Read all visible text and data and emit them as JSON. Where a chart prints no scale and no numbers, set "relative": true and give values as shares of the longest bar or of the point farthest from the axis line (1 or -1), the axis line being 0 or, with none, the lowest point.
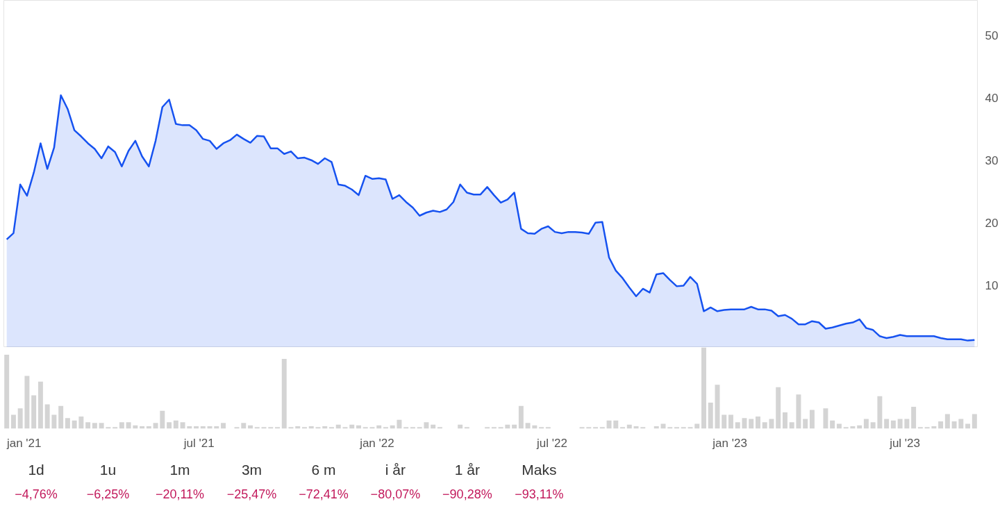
{
  "chart_data": [
    {
      "type": "area",
      "x": [
        "2020-12-14",
        "2020-12-21",
        "2020-12-28",
        "2021-01-04",
        "2021-01-11",
        "2021-01-18",
        "2021-01-25",
        "2021-02-01",
        "2021-02-08",
        "2021-02-15",
        "2021-02-22",
        "2021-03-01",
        "2021-03-08",
        "2021-03-15",
        "2021-03-22",
        "2021-03-29",
        "2021-04-05",
        "2021-04-12",
        "2021-04-19",
        "2021-04-26",
        "2021-05-03",
        "2021-05-10",
        "2021-05-17",
        "2021-05-24",
        "2021-05-31",
        "2021-06-07",
        "2021-06-14",
        "2021-06-21",
        "2021-06-28",
        "2021-07-05",
        "2021-07-12",
        "2021-07-19",
        "2021-07-26",
        "2021-08-02",
        "2021-08-09",
        "2021-08-16",
        "2021-08-23",
        "2021-08-30",
        "2021-09-06",
        "2021-09-13",
        "2021-09-20",
        "2021-09-27",
        "2021-10-04",
        "2021-10-11",
        "2021-10-18",
        "2021-10-25",
        "2021-11-01",
        "2021-11-08",
        "2021-11-15",
        "2021-11-22",
        "2021-11-29",
        "2021-12-06",
        "2021-12-13",
        "2021-12-20",
        "2021-12-27",
        "2022-01-03",
        "2022-01-10",
        "2022-01-17",
        "2022-01-24",
        "2022-01-31",
        "2022-02-07",
        "2022-02-14",
        "2022-02-21",
        "2022-02-28",
        "2022-03-07",
        "2022-03-14",
        "2022-03-21",
        "2022-03-28",
        "2022-04-04",
        "2022-04-11",
        "2022-04-18",
        "2022-04-25",
        "2022-05-02",
        "2022-05-09",
        "2022-05-16",
        "2022-05-23",
        "2022-05-30",
        "2022-06-06",
        "2022-06-13",
        "2022-06-20",
        "2022-06-27",
        "2022-07-04",
        "2022-07-11",
        "2022-07-18",
        "2022-07-25",
        "2022-08-01",
        "2022-08-08",
        "2022-08-15",
        "2022-08-22",
        "2022-08-29",
        "2022-09-05",
        "2022-09-12",
        "2022-09-19",
        "2022-09-26",
        "2022-10-03",
        "2022-10-10",
        "2022-10-17",
        "2022-10-24",
        "2022-10-31",
        "2022-11-07",
        "2022-11-14",
        "2022-11-21",
        "2022-11-28",
        "2022-12-05",
        "2022-12-12",
        "2022-12-19",
        "2022-12-26",
        "2023-01-02",
        "2023-01-09",
        "2023-01-16",
        "2023-01-23",
        "2023-01-30",
        "2023-02-06",
        "2023-02-13",
        "2023-02-20",
        "2023-02-27",
        "2023-03-06",
        "2023-03-13",
        "2023-03-20",
        "2023-03-27",
        "2023-04-03",
        "2023-04-10",
        "2023-04-17",
        "2023-04-24",
        "2023-05-01",
        "2023-05-08",
        "2023-05-15",
        "2023-05-22",
        "2023-05-29",
        "2023-06-05",
        "2023-06-12",
        "2023-06-19",
        "2023-06-26",
        "2023-07-03",
        "2023-07-10",
        "2023-07-17",
        "2023-07-24",
        "2023-07-31",
        "2023-08-07",
        "2023-08-14",
        "2023-08-21",
        "2023-08-28",
        "2023-09-04",
        "2023-09-11"
      ],
      "series": [
        {
          "color": "#1652f0",
          "values": [
            17.3,
            18.3,
            26.1,
            24.3,
            28.0,
            32.7,
            28.6,
            32.0,
            40.4,
            38.2,
            34.8,
            33.8,
            32.7,
            31.8,
            30.3,
            32.2,
            31.3,
            29.0,
            31.5,
            33.1,
            30.6,
            29.0,
            33.1,
            38.5,
            39.7,
            35.8,
            35.6,
            35.6,
            34.8,
            33.4,
            33.1,
            31.8,
            32.7,
            33.2,
            34.1,
            33.4,
            32.8,
            33.9,
            33.8,
            31.9,
            31.9,
            31.0,
            31.4,
            30.3,
            30.4,
            30.0,
            29.4,
            30.3,
            29.7,
            26.1,
            25.9,
            25.3,
            24.4,
            27.5,
            27.0,
            27.1,
            26.9,
            23.8,
            24.4,
            23.3,
            22.4,
            21.1,
            21.6,
            21.9,
            21.7,
            22.1,
            23.3,
            26.1,
            24.8,
            24.5,
            24.5,
            25.7,
            24.4,
            23.2,
            23.7,
            24.8,
            19.0,
            18.3,
            18.2,
            19.0,
            19.4,
            18.5,
            18.3,
            18.5,
            18.5,
            18.4,
            18.2,
            20.0,
            20.1,
            14.4,
            12.3,
            11.1,
            9.6,
            8.2,
            9.4,
            8.8,
            11.7,
            11.9,
            10.8,
            9.8,
            9.9,
            11.3,
            10.2,
            5.8,
            6.4,
            5.8,
            6.0,
            6.1,
            6.1,
            6.1,
            6.5,
            6.1,
            6.1,
            5.9,
            5.0,
            5.2,
            4.6,
            3.7,
            3.7,
            4.2,
            4.0,
            3.0,
            3.2,
            3.5,
            3.8,
            4.0,
            4.5,
            3.1,
            2.8,
            1.8,
            1.5,
            1.7,
            2.0,
            1.8,
            1.8,
            1.8,
            1.8,
            1.8,
            1.5,
            1.3,
            1.3,
            1.3,
            1.1,
            1.2
          ]
        }
      ],
      "xlim": [
        "2020-12-11",
        "2023-09-14"
      ],
      "ylim": [
        0,
        55.6
      ],
      "yticks": [
        10,
        20,
        30,
        40,
        50
      ],
      "tick_labels": "y",
      "grid": false
    },
    {
      "type": "bar",
      "relative": true,
      "color": "#d4d4d4",
      "x": [
        "2020-12-14",
        "2020-12-21",
        "2020-12-28",
        "2021-01-04",
        "2021-01-11",
        "2021-01-18",
        "2021-01-25",
        "2021-02-01",
        "2021-02-08",
        "2021-02-15",
        "2021-02-22",
        "2021-03-01",
        "2021-03-08",
        "2021-03-15",
        "2021-03-22",
        "2021-03-29",
        "2021-04-05",
        "2021-04-12",
        "2021-04-19",
        "2021-04-26",
        "2021-05-03",
        "2021-05-10",
        "2021-05-17",
        "2021-05-24",
        "2021-05-31",
        "2021-06-07",
        "2021-06-14",
        "2021-06-21",
        "2021-06-28",
        "2021-07-05",
        "2021-07-12",
        "2021-07-19",
        "2021-07-26",
        "2021-08-02",
        "2021-08-09",
        "2021-08-16",
        "2021-08-23",
        "2021-08-30",
        "2021-09-06",
        "2021-09-13",
        "2021-09-20",
        "2021-09-27",
        "2021-10-04",
        "2021-10-11",
        "2021-10-18",
        "2021-10-25",
        "2021-11-01",
        "2021-11-08",
        "2021-11-15",
        "2021-11-22",
        "2021-11-29",
        "2021-12-06",
        "2021-12-13",
        "2021-12-20",
        "2021-12-27",
        "2022-01-03",
        "2022-01-10",
        "2022-01-17",
        "2022-01-24",
        "2022-01-31",
        "2022-02-07",
        "2022-02-14",
        "2022-02-21",
        "2022-02-28",
        "2022-03-07",
        "2022-03-14",
        "2022-03-21",
        "2022-03-28",
        "2022-04-04",
        "2022-04-11",
        "2022-04-18",
        "2022-04-25",
        "2022-05-02",
        "2022-05-09",
        "2022-05-16",
        "2022-05-23",
        "2022-05-30",
        "2022-06-06",
        "2022-06-13",
        "2022-06-20",
        "2022-06-27",
        "2022-07-04",
        "2022-07-11",
        "2022-07-18",
        "2022-07-25",
        "2022-08-01",
        "2022-08-08",
        "2022-08-15",
        "2022-08-22",
        "2022-08-29",
        "2022-09-05",
        "2022-09-12",
        "2022-09-19",
        "2022-09-26",
        "2022-10-03",
        "2022-10-10",
        "2022-10-17",
        "2022-10-24",
        "2022-10-31",
        "2022-11-07",
        "2022-11-14",
        "2022-11-21",
        "2022-11-28",
        "2022-12-05",
        "2022-12-12",
        "2022-12-19",
        "2022-12-26",
        "2023-01-02",
        "2023-01-09",
        "2023-01-16",
        "2023-01-23",
        "2023-01-30",
        "2023-02-06",
        "2023-02-13",
        "2023-02-20",
        "2023-02-27",
        "2023-03-06",
        "2023-03-13",
        "2023-03-20",
        "2023-03-27",
        "2023-04-03",
        "2023-04-10",
        "2023-04-17",
        "2023-04-24",
        "2023-05-01",
        "2023-05-08",
        "2023-05-15",
        "2023-05-22",
        "2023-05-29",
        "2023-06-05",
        "2023-06-12",
        "2023-06-19",
        "2023-06-26",
        "2023-07-03",
        "2023-07-10",
        "2023-07-17",
        "2023-07-24",
        "2023-07-31",
        "2023-08-07",
        "2023-08-14",
        "2023-08-21",
        "2023-08-28",
        "2023-09-04",
        "2023-09-11"
      ],
      "values": [
        0.91,
        0.17,
        0.25,
        0.65,
        0.41,
        0.58,
        0.3,
        0.17,
        0.28,
        0.13,
        0.1,
        0.15,
        0.08,
        0.07,
        0.07,
        0.02,
        0.02,
        0.08,
        0.08,
        0.04,
        0.03,
        0.03,
        0.07,
        0.22,
        0.08,
        0.1,
        0.08,
        0.03,
        0.03,
        0.03,
        0.03,
        0.03,
        0.07,
        null,
        0.02,
        0.07,
        0.04,
        0.02,
        0.02,
        0.02,
        0.02,
        0.86,
        0.02,
        0.03,
        0.02,
        0.03,
        0.02,
        0.03,
        0.02,
        0.05,
        0.02,
        0.05,
        0.04,
        0.02,
        0.02,
        0.04,
        0.02,
        0.04,
        0.11,
        0.02,
        0.02,
        0.02,
        0.08,
        0.05,
        0.02,
        null,
        null,
        0.05,
        0.02,
        null,
        null,
        0.02,
        0.02,
        0.02,
        0.05,
        0.05,
        0.28,
        0.07,
        0.04,
        0.02,
        0.02,
        null,
        null,
        null,
        null,
        0.02,
        0.02,
        0.02,
        0.02,
        0.1,
        0.1,
        0.02,
        0.05,
        0.03,
        0.02,
        null,
        0.03,
        0.06,
        0.02,
        0.02,
        0.02,
        0.02,
        0.06,
        1,
        0.32,
        0.54,
        0.17,
        0.17,
        0.08,
        0.13,
        0.12,
        0.15,
        0.08,
        0.12,
        0.51,
        0.2,
        0.08,
        0.42,
        0.12,
        0.23,
        null,
        0.25,
        0.1,
        0.06,
        0.02,
        0.03,
        0.04,
        0.12,
        0.08,
        0.4,
        0.12,
        0.1,
        0.12,
        0.12,
        0.27,
        0.02,
        0.02,
        0.03,
        0.09,
        0.18,
        0.09,
        0.12,
        0.06,
        0.18
      ],
      "xlim": [
        "2020-12-11",
        "2023-09-14"
      ],
      "xticks": [
        {
          "value": "2021-01-01",
          "label": "jan '21"
        },
        {
          "value": "2021-07-01",
          "label": "jul '21"
        },
        {
          "value": "2022-01-01",
          "label": "jan '22"
        },
        {
          "value": "2022-07-01",
          "label": "jul '22"
        },
        {
          "value": "2023-01-01",
          "label": "jan '23"
        },
        {
          "value": "2023-07-01",
          "label": "jul '23"
        }
      ],
      "tick_labels": "x",
      "grid": false
    },
    {
      "type": "other",
      "categories": [
        "1d",
        "1u",
        "1m",
        "3m",
        "6 m",
        "i år",
        "1 år",
        "Maks"
      ],
      "values": [
        -4.76,
        -6.25,
        -20.11,
        -25.47,
        -72.41,
        -80.07,
        -90.28,
        -93.11
      ],
      "value_labels": [
        "−4,76%",
        "−6,25%",
        "−20,11%",
        "−25,47%",
        "−72,41%",
        "−80,07%",
        "−90,28%",
        "−93,11%"
      ],
      "colors": [
        "#c2185b",
        "#c2185b",
        "#c2185b",
        "#c2185b",
        "#c2185b",
        "#c2185b",
        "#c2185b",
        "#c2185b"
      ]
    }
  ]
}
